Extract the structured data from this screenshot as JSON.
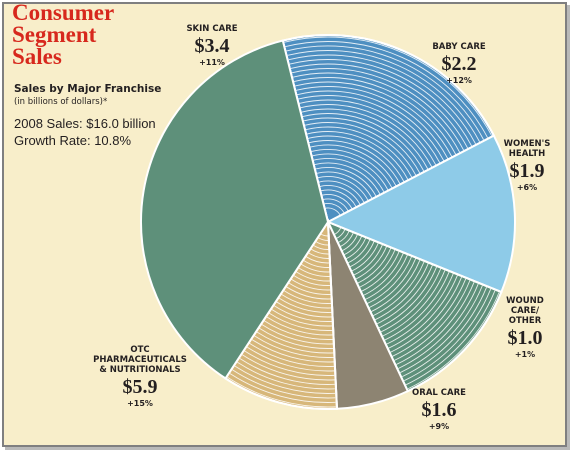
{
  "chart_data": {
    "type": "pie",
    "title": "Consumer\nSegment\nSales",
    "subtitle": "Sales by Major Franchise",
    "subtitle_note": "(in billions of dollars)*",
    "annotations": [
      "2008 Sales: $16.0 billion",
      "Growth Rate: 10.8%"
    ],
    "slices": [
      {
        "label": "SKIN CARE",
        "value": 3.4,
        "value_label": "$3.4",
        "growth": "+11%",
        "color": "#4e8fc1",
        "pattern": "rings"
      },
      {
        "label": "BABY CARE",
        "value": 2.2,
        "value_label": "$2.2",
        "growth": "+12%",
        "color": "#8ecbe8",
        "pattern": "solid"
      },
      {
        "label": "WOMEN'S\nHEALTH",
        "value": 1.9,
        "value_label": "$1.9",
        "growth": "+6%",
        "color": "#5e907a",
        "pattern": "rings"
      },
      {
        "label": "WOUND\nCARE/\nOTHER",
        "value": 1.0,
        "value_label": "$1.0",
        "growth": "+1%",
        "color": "#8d8472",
        "pattern": "solid"
      },
      {
        "label": "ORAL CARE",
        "value": 1.6,
        "value_label": "$1.6",
        "growth": "+9%",
        "color": "#d7b77a",
        "pattern": "rings"
      },
      {
        "label": "OTC\nPHARMACEUTICALS\n& NUTRITIONALS",
        "value": 5.9,
        "value_label": "$5.9",
        "growth": "+15%",
        "color": "#5e907a",
        "pattern": "solid"
      }
    ]
  }
}
